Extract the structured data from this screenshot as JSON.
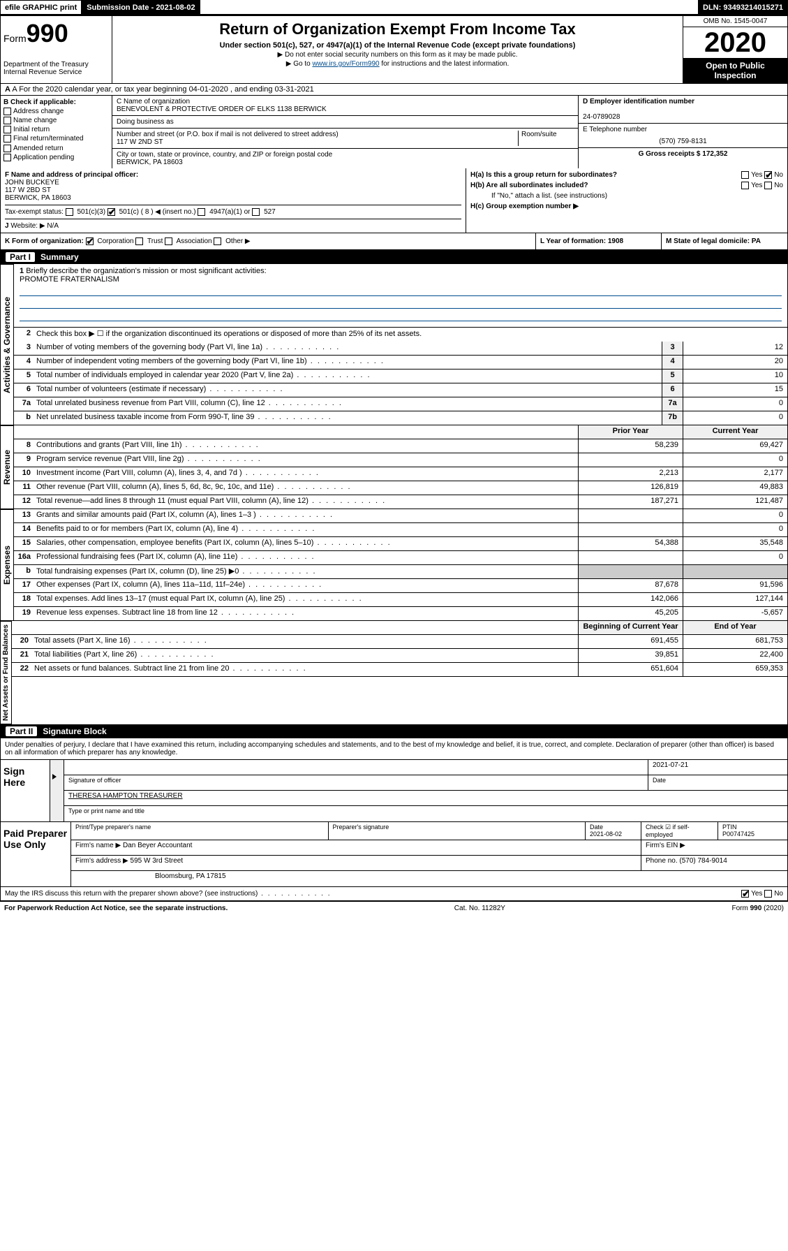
{
  "topbar": {
    "efile": "efile GRAPHIC print",
    "subdate_lbl": "Submission Date - 2021-08-02",
    "dln": "DLN: 93493214015271"
  },
  "header": {
    "form_lbl": "Form",
    "form_num": "990",
    "dept": "Department of the Treasury Internal Revenue Service",
    "title": "Return of Organization Exempt From Income Tax",
    "sub": "Under section 501(c), 527, or 4947(a)(1) of the Internal Revenue Code (except private foundations)",
    "note1": "▶ Do not enter social security numbers on this form as it may be made public.",
    "note2_pre": "▶ Go to ",
    "note2_link": "www.irs.gov/Form990",
    "note2_post": " for instructions and the latest information.",
    "omb": "OMB No. 1545-0047",
    "year": "2020",
    "open": "Open to Public Inspection"
  },
  "rowA": "A   For the 2020 calendar year, or tax year beginning 04-01-2020     , and ending 03-31-2021",
  "colB": {
    "hdr": "B Check if applicable:",
    "items": [
      "Address change",
      "Name change",
      "Initial return",
      "Final return/terminated",
      "Amended return",
      "Application pending"
    ]
  },
  "colC": {
    "name_lbl": "C Name of organization",
    "name": "BENEVOLENT & PROTECTIVE ORDER OF ELKS 1138 BERWICK",
    "dba_lbl": "Doing business as",
    "addr_lbl": "Number and street (or P.O. box if mail is not delivered to street address)",
    "room_lbl": "Room/suite",
    "addr": "117 W 2ND ST",
    "city_lbl": "City or town, state or province, country, and ZIP or foreign postal code",
    "city": "BERWICK, PA  18603"
  },
  "colD": {
    "ein_lbl": "D Employer identification number",
    "ein": "24-0789028",
    "phone_lbl": "E Telephone number",
    "phone": "(570) 759-8131",
    "gross_lbl": "G Gross receipts $ 172,352"
  },
  "rowF": {
    "f_lbl": "F  Name and address of principal officer:",
    "f_name": "JOHN BUCKEYE",
    "f_addr1": "117 W 2BD ST",
    "f_addr2": "BERWICK, PA  18603",
    "tax_lbl": "Tax-exempt status:",
    "tax_501c3": "501(c)(3)",
    "tax_501c": "501(c) ( 8 ) ◀ (insert no.)",
    "tax_4947": "4947(a)(1) or",
    "tax_527": "527",
    "web_lbl": "Website: ▶",
    "web": "N/A",
    "ha": "H(a)  Is this a group return for subordinates?",
    "ha_yes": "Yes",
    "ha_no": "No",
    "hb": "H(b)  Are all subordinates included?",
    "hb_note": "If \"No,\" attach a list. (see instructions)",
    "hc": "H(c)  Group exemption number ▶"
  },
  "rowK": {
    "k": "K Form of organization:",
    "corp": "Corporation",
    "trust": "Trust",
    "assoc": "Association",
    "other": "Other ▶",
    "l": "L Year of formation: 1908",
    "m": "M State of legal domicile: PA"
  },
  "part1": {
    "hdr_num": "Part I",
    "hdr": "Summary",
    "vtab_gov": "Activities & Governance",
    "vtab_rev": "Revenue",
    "vtab_exp": "Expenses",
    "vtab_net": "Net Assets or Fund Balances",
    "l1": "Briefly describe the organization's mission or most significant activities:",
    "l1v": "PROMOTE FRATERNALISM",
    "l2": "Check this box ▶ ☐  if the organization discontinued its operations or disposed of more than 25% of its net assets.",
    "lines_gov": [
      {
        "n": "3",
        "d": "Number of voting members of the governing body (Part VI, line 1a)",
        "b": "3",
        "v": "12"
      },
      {
        "n": "4",
        "d": "Number of independent voting members of the governing body (Part VI, line 1b)",
        "b": "4",
        "v": "20"
      },
      {
        "n": "5",
        "d": "Total number of individuals employed in calendar year 2020 (Part V, line 2a)",
        "b": "5",
        "v": "10"
      },
      {
        "n": "6",
        "d": "Total number of volunteers (estimate if necessary)",
        "b": "6",
        "v": "15"
      },
      {
        "n": "7a",
        "d": "Total unrelated business revenue from Part VIII, column (C), line 12",
        "b": "7a",
        "v": "0"
      },
      {
        "n": "b",
        "d": "Net unrelated business taxable income from Form 990-T, line 39",
        "b": "7b",
        "v": "0"
      }
    ],
    "col_prior": "Prior Year",
    "col_curr": "Current Year",
    "lines_rev": [
      {
        "n": "8",
        "d": "Contributions and grants (Part VIII, line 1h)",
        "p": "58,239",
        "c": "69,427"
      },
      {
        "n": "9",
        "d": "Program service revenue (Part VIII, line 2g)",
        "p": "",
        "c": "0"
      },
      {
        "n": "10",
        "d": "Investment income (Part VIII, column (A), lines 3, 4, and 7d )",
        "p": "2,213",
        "c": "2,177"
      },
      {
        "n": "11",
        "d": "Other revenue (Part VIII, column (A), lines 5, 6d, 8c, 9c, 10c, and 11e)",
        "p": "126,819",
        "c": "49,883"
      },
      {
        "n": "12",
        "d": "Total revenue—add lines 8 through 11 (must equal Part VIII, column (A), line 12)",
        "p": "187,271",
        "c": "121,487"
      }
    ],
    "lines_exp": [
      {
        "n": "13",
        "d": "Grants and similar amounts paid (Part IX, column (A), lines 1–3 )",
        "p": "",
        "c": "0"
      },
      {
        "n": "14",
        "d": "Benefits paid to or for members (Part IX, column (A), line 4)",
        "p": "",
        "c": "0"
      },
      {
        "n": "15",
        "d": "Salaries, other compensation, employee benefits (Part IX, column (A), lines 5–10)",
        "p": "54,388",
        "c": "35,548"
      },
      {
        "n": "16a",
        "d": "Professional fundraising fees (Part IX, column (A), line 11e)",
        "p": "",
        "c": "0"
      },
      {
        "n": "b",
        "d": "Total fundraising expenses (Part IX, column (D), line 25) ▶0",
        "p": "—",
        "c": "—"
      },
      {
        "n": "17",
        "d": "Other expenses (Part IX, column (A), lines 11a–11d, 11f–24e)",
        "p": "87,678",
        "c": "91,596"
      },
      {
        "n": "18",
        "d": "Total expenses. Add lines 13–17 (must equal Part IX, column (A), line 25)",
        "p": "142,066",
        "c": "127,144"
      },
      {
        "n": "19",
        "d": "Revenue less expenses. Subtract line 18 from line 12",
        "p": "45,205",
        "c": "-5,657"
      }
    ],
    "col_beg": "Beginning of Current Year",
    "col_end": "End of Year",
    "lines_net": [
      {
        "n": "20",
        "d": "Total assets (Part X, line 16)",
        "p": "691,455",
        "c": "681,753"
      },
      {
        "n": "21",
        "d": "Total liabilities (Part X, line 26)",
        "p": "39,851",
        "c": "22,400"
      },
      {
        "n": "22",
        "d": "Net assets or fund balances. Subtract line 21 from line 20",
        "p": "651,604",
        "c": "659,353"
      }
    ]
  },
  "part2": {
    "hdr_num": "Part II",
    "hdr": "Signature Block",
    "decl": "Under penalties of perjury, I declare that I have examined this return, including accompanying schedules and statements, and to the best of my knowledge and belief, it is true, correct, and complete. Declaration of preparer (other than officer) is based on all information of which preparer has any knowledge.",
    "sign_here": "Sign Here",
    "sig_officer": "Signature of officer",
    "sig_date": "2021-07-21",
    "date_lbl": "Date",
    "name_title": "THERESA HAMPTON  TREASURER",
    "name_title_lbl": "Type or print name and title",
    "paid": "Paid Preparer Use Only",
    "prep_name_lbl": "Print/Type preparer's name",
    "prep_sig_lbl": "Preparer's signature",
    "prep_date": "2021-08-02",
    "self_emp": "Check ☑ if self-employed",
    "ptin_lbl": "PTIN",
    "ptin": "P00747425",
    "firm_name_lbl": "Firm's name   ▶",
    "firm_name": "Dan Beyer Accountant",
    "firm_ein_lbl": "Firm's EIN ▶",
    "firm_addr_lbl": "Firm's address ▶",
    "firm_addr": "595 W 3rd Street",
    "firm_city": "Bloomsburg, PA  17815",
    "firm_phone_lbl": "Phone no. (570) 784-9014",
    "discuss": "May the IRS discuss this return with the preparer shown above? (see instructions)",
    "yes": "Yes",
    "no": "No"
  },
  "footer": {
    "pra": "For Paperwork Reduction Act Notice, see the separate instructions.",
    "cat": "Cat. No. 11282Y",
    "form": "Form 990 (2020)"
  }
}
